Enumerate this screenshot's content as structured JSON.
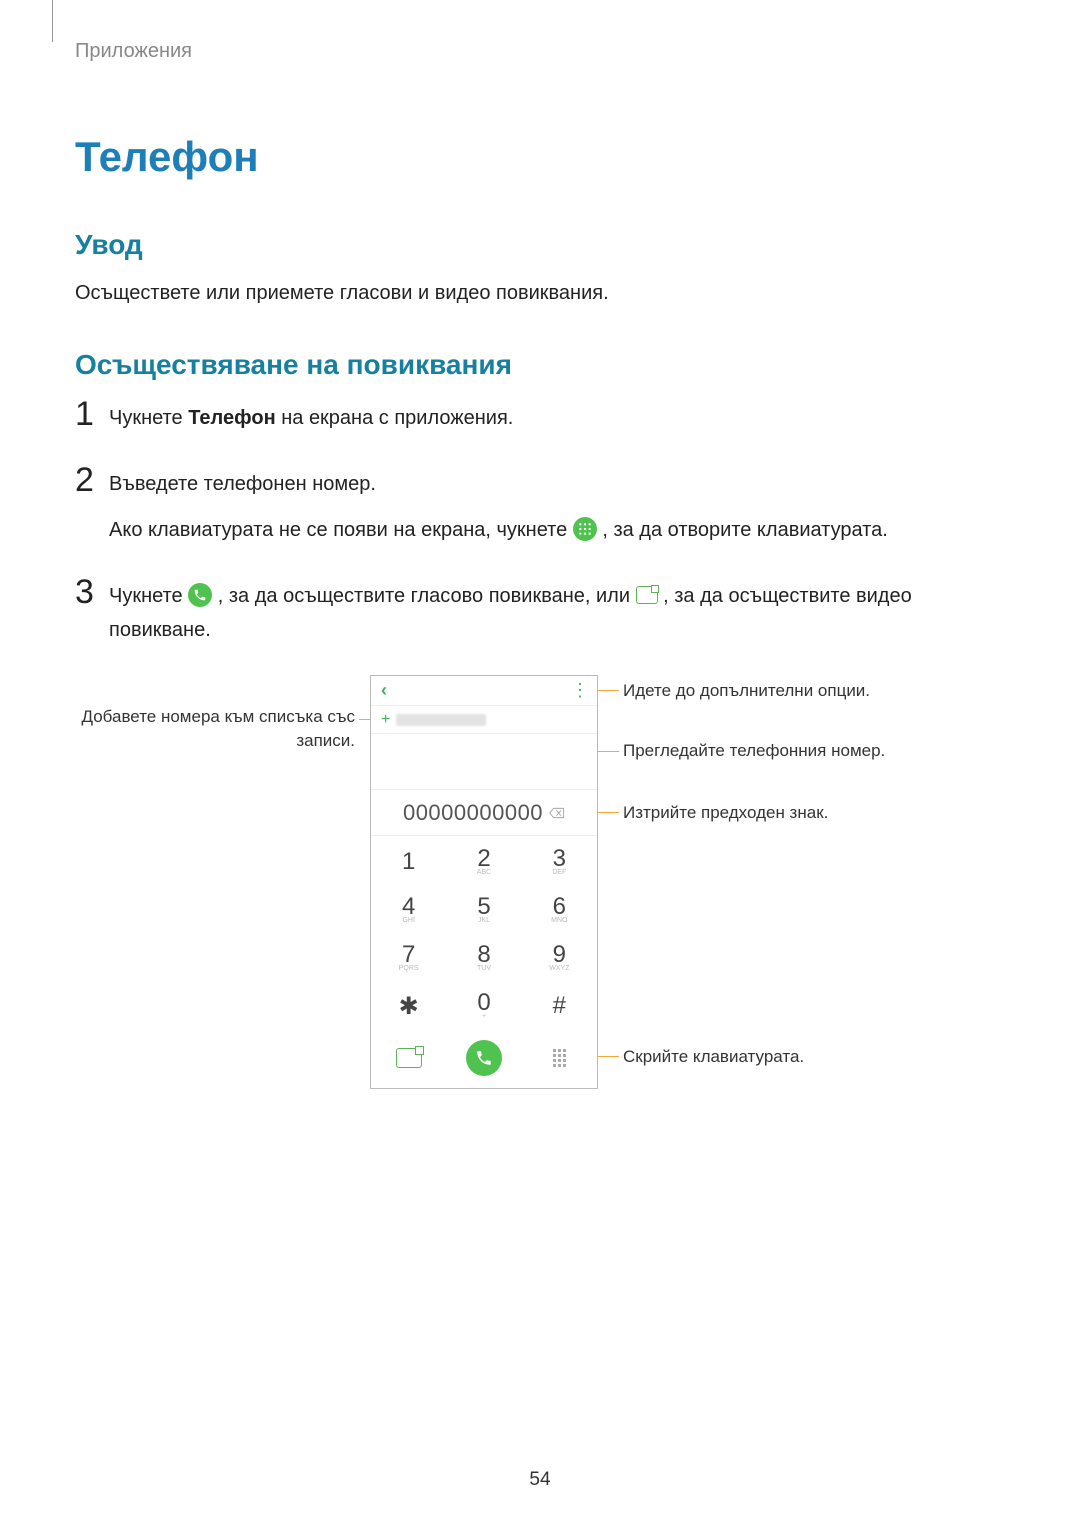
{
  "breadcrumb": "Приложения",
  "title_color": "#1e7fb8",
  "heading_color": "#17809e",
  "title": "Телефон",
  "intro_heading": "Увод",
  "intro_body": "Осъществете или приемете гласови и видео повиквания.",
  "calls_heading": "Осъществяване на повиквания",
  "steps": [
    {
      "num": "1",
      "pre": "Чукнете ",
      "bold": "Телефон",
      "post": " на екрана с приложения."
    },
    {
      "num": "2",
      "line1": "Въведете телефонен номер.",
      "line2_pre": "Ако клавиатурата не се появи на екрана, чукнете ",
      "line2_post": ", за да отворите клавиатурата."
    },
    {
      "num": "3",
      "line1_pre": "Чукнете ",
      "line1_mid": ", за да осъществите гласово повикване, или ",
      "line1_post": ", за да осъществите видео повикване."
    }
  ],
  "phone": {
    "display_number": "00000000000",
    "keys": [
      {
        "d": "1",
        "s": ""
      },
      {
        "d": "2",
        "s": "ABC"
      },
      {
        "d": "3",
        "s": "DEF"
      },
      {
        "d": "4",
        "s": "GHI"
      },
      {
        "d": "5",
        "s": "JKL"
      },
      {
        "d": "6",
        "s": "MNO"
      },
      {
        "d": "7",
        "s": "PQRS"
      },
      {
        "d": "8",
        "s": "TUV"
      },
      {
        "d": "9",
        "s": "WXYZ"
      },
      {
        "d": "✱",
        "s": ""
      },
      {
        "d": "0",
        "s": "+"
      },
      {
        "d": "#",
        "s": ""
      }
    ]
  },
  "callouts": {
    "left_add": "Добавете номера към списъка със записи.",
    "right_more": "Идете до допълнителни опции.",
    "right_preview": "Прегледайте телефонния номер.",
    "right_delete": "Изтрийте предходен знак.",
    "right_hide": "Скрийте клавиатурата."
  },
  "inline_icon_dialpad_bg": "#4fc24f",
  "inline_icon_call_bg": "#4fc24f",
  "callout_line_color": "#f7a63a",
  "page_number": "54"
}
